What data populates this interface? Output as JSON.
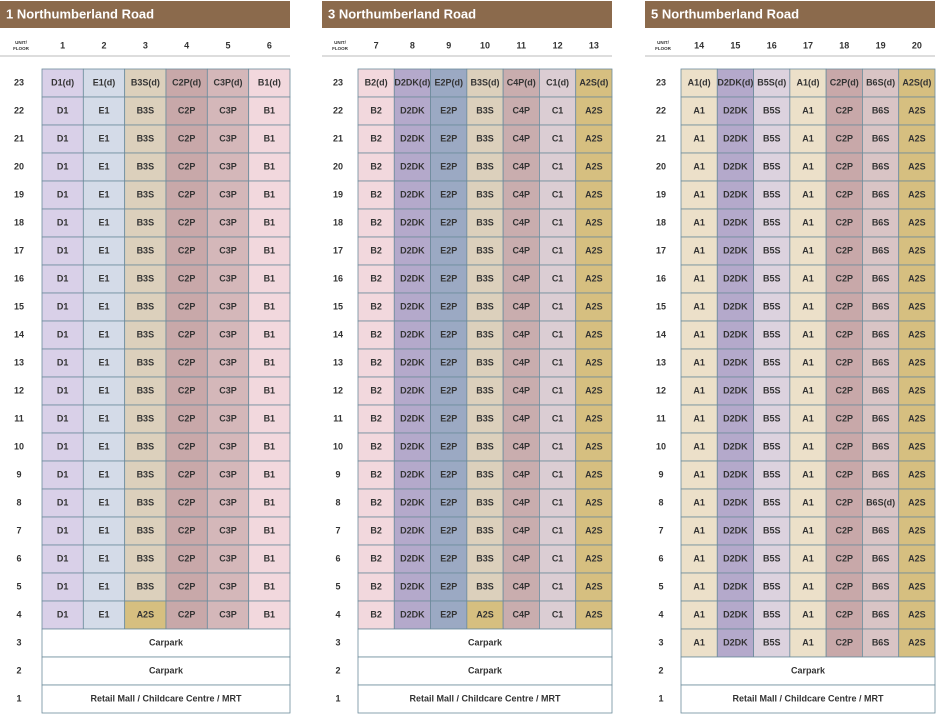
{
  "blocks": [
    {
      "title": "1 Northumberland Road",
      "header_label": [
        "UNIT/",
        "FLOOR"
      ],
      "units": [
        "1",
        "2",
        "3",
        "4",
        "5",
        "6"
      ],
      "rows": [
        {
          "floor": "23",
          "cells": [
            "D1(d)",
            "E1(d)",
            "B3S(d)",
            "C2P(d)",
            "C3P(d)",
            "B1(d)"
          ]
        },
        {
          "floor": "22",
          "cells": [
            "D1",
            "E1",
            "B3S",
            "C2P",
            "C3P",
            "B1"
          ]
        },
        {
          "floor": "21",
          "cells": [
            "D1",
            "E1",
            "B3S",
            "C2P",
            "C3P",
            "B1"
          ]
        },
        {
          "floor": "20",
          "cells": [
            "D1",
            "E1",
            "B3S",
            "C2P",
            "C3P",
            "B1"
          ]
        },
        {
          "floor": "19",
          "cells": [
            "D1",
            "E1",
            "B3S",
            "C2P",
            "C3P",
            "B1"
          ]
        },
        {
          "floor": "18",
          "cells": [
            "D1",
            "E1",
            "B3S",
            "C2P",
            "C3P",
            "B1"
          ]
        },
        {
          "floor": "17",
          "cells": [
            "D1",
            "E1",
            "B3S",
            "C2P",
            "C3P",
            "B1"
          ]
        },
        {
          "floor": "16",
          "cells": [
            "D1",
            "E1",
            "B3S",
            "C2P",
            "C3P",
            "B1"
          ]
        },
        {
          "floor": "15",
          "cells": [
            "D1",
            "E1",
            "B3S",
            "C2P",
            "C3P",
            "B1"
          ]
        },
        {
          "floor": "14",
          "cells": [
            "D1",
            "E1",
            "B3S",
            "C2P",
            "C3P",
            "B1"
          ]
        },
        {
          "floor": "13",
          "cells": [
            "D1",
            "E1",
            "B3S",
            "C2P",
            "C3P",
            "B1"
          ]
        },
        {
          "floor": "12",
          "cells": [
            "D1",
            "E1",
            "B3S",
            "C2P",
            "C3P",
            "B1"
          ]
        },
        {
          "floor": "11",
          "cells": [
            "D1",
            "E1",
            "B3S",
            "C2P",
            "C3P",
            "B1"
          ]
        },
        {
          "floor": "10",
          "cells": [
            "D1",
            "E1",
            "B3S",
            "C2P",
            "C3P",
            "B1"
          ]
        },
        {
          "floor": "9",
          "cells": [
            "D1",
            "E1",
            "B3S",
            "C2P",
            "C3P",
            "B1"
          ]
        },
        {
          "floor": "8",
          "cells": [
            "D1",
            "E1",
            "B3S",
            "C2P",
            "C3P",
            "B1"
          ]
        },
        {
          "floor": "7",
          "cells": [
            "D1",
            "E1",
            "B3S",
            "C2P",
            "C3P",
            "B1"
          ]
        },
        {
          "floor": "6",
          "cells": [
            "D1",
            "E1",
            "B3S",
            "C2P",
            "C3P",
            "B1"
          ]
        },
        {
          "floor": "5",
          "cells": [
            "D1",
            "E1",
            "B3S",
            "C2P",
            "C3P",
            "B1"
          ]
        },
        {
          "floor": "4",
          "cells": [
            "D1",
            "E1",
            "A2S",
            "C2P",
            "C3P",
            "B1"
          ]
        },
        {
          "floor": "3",
          "cells": [
            "Carpark"
          ]
        },
        {
          "floor": "2",
          "cells": [
            "Carpark"
          ]
        },
        {
          "floor": "1",
          "cells": [
            "Retail Mall / Childcare Centre / MRT"
          ]
        }
      ]
    },
    {
      "title": "3 Northumberland Road",
      "header_label": [
        "UNIT/",
        "FLOOR"
      ],
      "units": [
        "7",
        "8",
        "9",
        "10",
        "11",
        "12",
        "13"
      ],
      "rows": [
        {
          "floor": "23",
          "cells": [
            "B2(d)",
            "D2DK(d)",
            "E2P(d)",
            "B3S(d)",
            "C4P(d)",
            "C1(d)",
            "A2S(d)"
          ]
        },
        {
          "floor": "22",
          "cells": [
            "B2",
            "D2DK",
            "E2P",
            "B3S",
            "C4P",
            "C1",
            "A2S"
          ]
        },
        {
          "floor": "21",
          "cells": [
            "B2",
            "D2DK",
            "E2P",
            "B3S",
            "C4P",
            "C1",
            "A2S"
          ]
        },
        {
          "floor": "20",
          "cells": [
            "B2",
            "D2DK",
            "E2P",
            "B3S",
            "C4P",
            "C1",
            "A2S"
          ]
        },
        {
          "floor": "19",
          "cells": [
            "B2",
            "D2DK",
            "E2P",
            "B3S",
            "C4P",
            "C1",
            "A2S"
          ]
        },
        {
          "floor": "18",
          "cells": [
            "B2",
            "D2DK",
            "E2P",
            "B3S",
            "C4P",
            "C1",
            "A2S"
          ]
        },
        {
          "floor": "17",
          "cells": [
            "B2",
            "D2DK",
            "E2P",
            "B3S",
            "C4P",
            "C1",
            "A2S"
          ]
        },
        {
          "floor": "16",
          "cells": [
            "B2",
            "D2DK",
            "E2P",
            "B3S",
            "C4P",
            "C1",
            "A2S"
          ]
        },
        {
          "floor": "15",
          "cells": [
            "B2",
            "D2DK",
            "E2P",
            "B3S",
            "C4P",
            "C1",
            "A2S"
          ]
        },
        {
          "floor": "14",
          "cells": [
            "B2",
            "D2DK",
            "E2P",
            "B3S",
            "C4P",
            "C1",
            "A2S"
          ]
        },
        {
          "floor": "13",
          "cells": [
            "B2",
            "D2DK",
            "E2P",
            "B3S",
            "C4P",
            "C1",
            "A2S"
          ]
        },
        {
          "floor": "12",
          "cells": [
            "B2",
            "D2DK",
            "E2P",
            "B3S",
            "C4P",
            "C1",
            "A2S"
          ]
        },
        {
          "floor": "11",
          "cells": [
            "B2",
            "D2DK",
            "E2P",
            "B3S",
            "C4P",
            "C1",
            "A2S"
          ]
        },
        {
          "floor": "10",
          "cells": [
            "B2",
            "D2DK",
            "E2P",
            "B3S",
            "C4P",
            "C1",
            "A2S"
          ]
        },
        {
          "floor": "9",
          "cells": [
            "B2",
            "D2DK",
            "E2P",
            "B3S",
            "C4P",
            "C1",
            "A2S"
          ]
        },
        {
          "floor": "8",
          "cells": [
            "B2",
            "D2DK",
            "E2P",
            "B3S",
            "C4P",
            "C1",
            "A2S"
          ]
        },
        {
          "floor": "7",
          "cells": [
            "B2",
            "D2DK",
            "E2P",
            "B3S",
            "C4P",
            "C1",
            "A2S"
          ]
        },
        {
          "floor": "6",
          "cells": [
            "B2",
            "D2DK",
            "E2P",
            "B3S",
            "C4P",
            "C1",
            "A2S"
          ]
        },
        {
          "floor": "5",
          "cells": [
            "B2",
            "D2DK",
            "E2P",
            "B3S",
            "C4P",
            "C1",
            "A2S"
          ]
        },
        {
          "floor": "4",
          "cells": [
            "B2",
            "D2DK",
            "E2P",
            "A2S",
            "C4P",
            "C1",
            "A2S"
          ]
        },
        {
          "floor": "3",
          "cells": [
            "Carpark"
          ]
        },
        {
          "floor": "2",
          "cells": [
            "Carpark"
          ]
        },
        {
          "floor": "1",
          "cells": [
            "Retail Mall / Childcare Centre / MRT"
          ]
        }
      ]
    },
    {
      "title": "5 Northumberland Road",
      "header_label": [
        "UNIT/",
        "FLOOR"
      ],
      "units": [
        "14",
        "15",
        "16",
        "17",
        "18",
        "19",
        "20"
      ],
      "rows": [
        {
          "floor": "23",
          "cells": [
            "A1(d)",
            "D2DK(d)",
            "B5S(d)",
            "A1(d)",
            "C2P(d)",
            "B6S(d)",
            "A2S(d)"
          ]
        },
        {
          "floor": "22",
          "cells": [
            "A1",
            "D2DK",
            "B5S",
            "A1",
            "C2P",
            "B6S",
            "A2S"
          ]
        },
        {
          "floor": "21",
          "cells": [
            "A1",
            "D2DK",
            "B5S",
            "A1",
            "C2P",
            "B6S",
            "A2S"
          ]
        },
        {
          "floor": "20",
          "cells": [
            "A1",
            "D2DK",
            "B5S",
            "A1",
            "C2P",
            "B6S",
            "A2S"
          ]
        },
        {
          "floor": "19",
          "cells": [
            "A1",
            "D2DK",
            "B5S",
            "A1",
            "C2P",
            "B6S",
            "A2S"
          ]
        },
        {
          "floor": "18",
          "cells": [
            "A1",
            "D2DK",
            "B5S",
            "A1",
            "C2P",
            "B6S",
            "A2S"
          ]
        },
        {
          "floor": "17",
          "cells": [
            "A1",
            "D2DK",
            "B5S",
            "A1",
            "C2P",
            "B6S",
            "A2S"
          ]
        },
        {
          "floor": "16",
          "cells": [
            "A1",
            "D2DK",
            "B5S",
            "A1",
            "C2P",
            "B6S",
            "A2S"
          ]
        },
        {
          "floor": "15",
          "cells": [
            "A1",
            "D2DK",
            "B5S",
            "A1",
            "C2P",
            "B6S",
            "A2S"
          ]
        },
        {
          "floor": "14",
          "cells": [
            "A1",
            "D2DK",
            "B5S",
            "A1",
            "C2P",
            "B6S",
            "A2S"
          ]
        },
        {
          "floor": "13",
          "cells": [
            "A1",
            "D2DK",
            "B5S",
            "A1",
            "C2P",
            "B6S",
            "A2S"
          ]
        },
        {
          "floor": "12",
          "cells": [
            "A1",
            "D2DK",
            "B5S",
            "A1",
            "C2P",
            "B6S",
            "A2S"
          ]
        },
        {
          "floor": "11",
          "cells": [
            "A1",
            "D2DK",
            "B5S",
            "A1",
            "C2P",
            "B6S",
            "A2S"
          ]
        },
        {
          "floor": "10",
          "cells": [
            "A1",
            "D2DK",
            "B5S",
            "A1",
            "C2P",
            "B6S",
            "A2S"
          ]
        },
        {
          "floor": "9",
          "cells": [
            "A1",
            "D2DK",
            "B5S",
            "A1",
            "C2P",
            "B6S",
            "A2S"
          ]
        },
        {
          "floor": "8",
          "cells": [
            "A1",
            "D2DK",
            "B5S",
            "A1",
            "C2P",
            "B6S(d)",
            "A2S"
          ]
        },
        {
          "floor": "7",
          "cells": [
            "A1",
            "D2DK",
            "B5S",
            "A1",
            "C2P",
            "B6S",
            "A2S"
          ]
        },
        {
          "floor": "6",
          "cells": [
            "A1",
            "D2DK",
            "B5S",
            "A1",
            "C2P",
            "B6S",
            "A2S"
          ]
        },
        {
          "floor": "5",
          "cells": [
            "A1",
            "D2DK",
            "B5S",
            "A1",
            "C2P",
            "B6S",
            "A2S"
          ]
        },
        {
          "floor": "4",
          "cells": [
            "A1",
            "D2DK",
            "B5S",
            "A1",
            "C2P",
            "B6S",
            "A2S"
          ]
        },
        {
          "floor": "3",
          "cells": [
            "A1",
            "D2DK",
            "B5S",
            "A1",
            "C2P",
            "B6S",
            "A2S"
          ]
        },
        {
          "floor": "2",
          "cells": [
            "Carpark"
          ]
        },
        {
          "floor": "1",
          "cells": [
            "Retail Mall / Childcare Centre / MRT"
          ]
        }
      ]
    }
  ]
}
